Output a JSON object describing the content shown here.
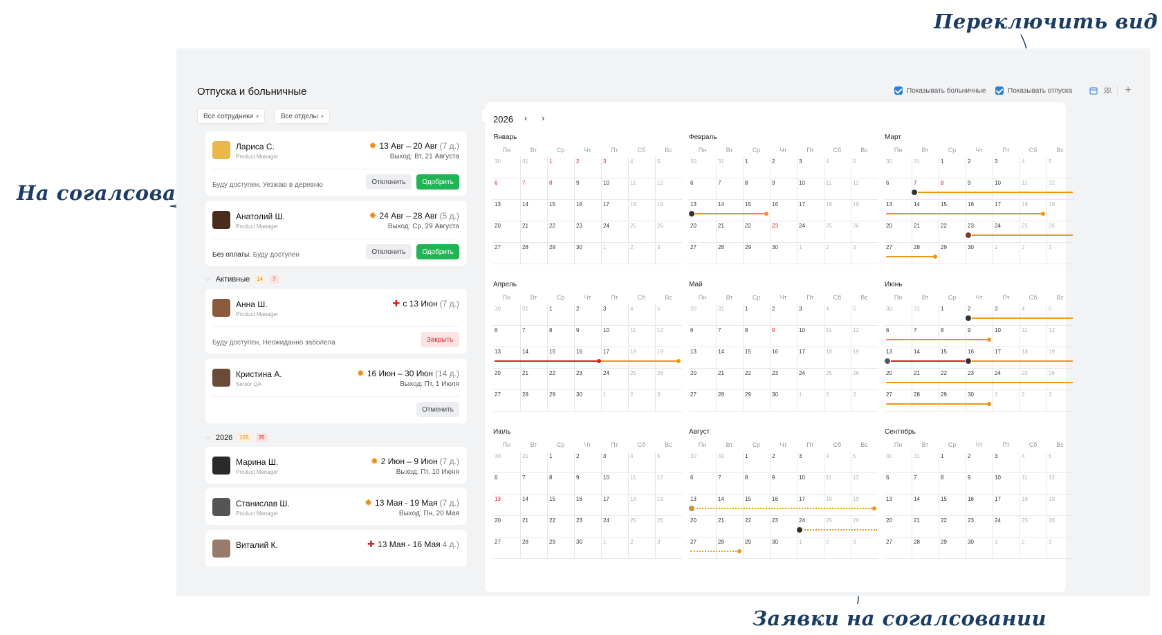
{
  "annotations": {
    "switch_view": "Переключить вид",
    "pending": "На согалсовании",
    "pending_requests": "Заявки на согалсовании"
  },
  "header": {
    "title": "Отпуска и больничные",
    "show_sick": "Показывать больничные",
    "show_vacation": "Показывать отпуска",
    "view_calendar_icon": "calendar-icon",
    "view_people_icon": "people-icon"
  },
  "filters": {
    "employees": "Все сотрудники",
    "departments": "Все отделы"
  },
  "pending_cards": [
    {
      "name": "Лариса С.",
      "role": "Product Manager",
      "dates": "13 Авг – 20 Авг",
      "days": "(7 д.)",
      "return": "Выход: Вт, 21 Августа",
      "note_bold": "",
      "note": "Буду доступен, Уезжаю в деревню",
      "reject": "Отклонить",
      "approve": "Одобрить"
    },
    {
      "name": "Анатолий Ш.",
      "role": "Product Manager",
      "dates": "24 Авг – 28 Авг",
      "days": "(5 д.)",
      "return": "Выход: Ср, 29 Августа",
      "note_bold": "Без оплаты.",
      "note": "Буду доступен",
      "reject": "Отклонить",
      "approve": "Одобрить"
    }
  ],
  "active_section": {
    "label": "Активные",
    "badge_vac": "14",
    "badge_sick": "7"
  },
  "active_cards": [
    {
      "name": "Анна Ш.",
      "role": "Product Manager",
      "dates": "с 13 Июн",
      "days": "(7 д.)",
      "note": "Буду доступен, Неожиданно заболела",
      "action": "Закрыть"
    },
    {
      "name": "Кристина А.",
      "role": "Senior QA",
      "dates": "16 Июн – 30 Июн",
      "days": "(14 д.)",
      "return": "Выход: Пт, 1 Июля",
      "action": "Отменить"
    }
  ],
  "year_section": {
    "label": "2026",
    "badge_vac": "155",
    "badge_sick": "35"
  },
  "year_cards": [
    {
      "name": "Марина Ш.",
      "role": "Product Manager",
      "dates": "2 Июн – 9 Июн",
      "days": "(7 д.)",
      "return": "Выход: Пт, 10 Июня"
    },
    {
      "name": "Станислав Ш.",
      "role": "Product Manager",
      "dates": "13 Мая - 19 Мая",
      "days": "(7 д.)",
      "return": "Выход: Пн, 20 Мая"
    },
    {
      "name": "Виталий К.",
      "role": "",
      "dates": "13 Мая - 16 Мая",
      "days": "4 д.)",
      "return": ""
    }
  ],
  "calendar": {
    "year": "2026",
    "weekdays": [
      "Пн",
      "Вт",
      "Ср",
      "Чт",
      "Пт",
      "Сб",
      "Вс"
    ],
    "months": [
      {
        "name": "Январь",
        "rows": [
          [
            "30",
            "31",
            "1",
            "2",
            "3",
            "4",
            "5"
          ],
          [
            "6",
            "7",
            "8",
            "9",
            "10",
            "11",
            "12"
          ],
          [
            "13",
            "14",
            "15",
            "16",
            "17",
            "18",
            "19"
          ],
          [
            "20",
            "21",
            "22",
            "23",
            "24",
            "25",
            "26"
          ],
          [
            "27",
            "28",
            "29",
            "30",
            "1",
            "2",
            "3"
          ]
        ],
        "red": [
          [
            0,
            2
          ],
          [
            0,
            3
          ],
          [
            0,
            4
          ],
          [
            1,
            0
          ],
          [
            1,
            1
          ],
          [
            1,
            2
          ]
        ]
      },
      {
        "name": "Февраль",
        "rows": [
          [
            "30",
            "31",
            "1",
            "2",
            "3",
            "4",
            "5"
          ],
          [
            "6",
            "7",
            "8",
            "9",
            "10",
            "11",
            "12"
          ],
          [
            "13",
            "14",
            "15",
            "16",
            "17",
            "18",
            "19"
          ],
          [
            "20",
            "21",
            "22",
            "23",
            "24",
            "25",
            "26"
          ],
          [
            "27",
            "28",
            "29",
            "30",
            "1",
            "2",
            "3"
          ]
        ],
        "red": [
          [
            3,
            3
          ]
        ]
      },
      {
        "name": "Март",
        "rows": [
          [
            "30",
            "31",
            "1",
            "2",
            "3",
            "4",
            "5"
          ],
          [
            "6",
            "7",
            "8",
            "9",
            "10",
            "11",
            "12"
          ],
          [
            "13",
            "14",
            "15",
            "16",
            "17",
            "18",
            "19"
          ],
          [
            "20",
            "21",
            "22",
            "23",
            "24",
            "25",
            "26"
          ],
          [
            "27",
            "28",
            "29",
            "30",
            "1",
            "2",
            "3"
          ]
        ],
        "red": [
          [
            1,
            2
          ]
        ]
      },
      {
        "name": "Апрель",
        "rows": [
          [
            "30",
            "31",
            "1",
            "2",
            "3",
            "4",
            "5"
          ],
          [
            "6",
            "7",
            "8",
            "9",
            "10",
            "11",
            "12"
          ],
          [
            "13",
            "14",
            "15",
            "16",
            "17",
            "18",
            "19"
          ],
          [
            "20",
            "21",
            "22",
            "23",
            "24",
            "25",
            "26"
          ],
          [
            "27",
            "28",
            "29",
            "30",
            "1",
            "2",
            "3"
          ]
        ],
        "red": []
      },
      {
        "name": "Май",
        "rows": [
          [
            "30",
            "31",
            "1",
            "2",
            "3",
            "4",
            "5"
          ],
          [
            "6",
            "7",
            "8",
            "9",
            "10",
            "11",
            "12"
          ],
          [
            "13",
            "14",
            "15",
            "16",
            "17",
            "18",
            "19"
          ],
          [
            "20",
            "21",
            "22",
            "23",
            "24",
            "25",
            "26"
          ],
          [
            "27",
            "28",
            "29",
            "30",
            "1",
            "2",
            "3"
          ]
        ],
        "red": [
          [
            1,
            3
          ]
        ]
      },
      {
        "name": "Июнь",
        "rows": [
          [
            "30",
            "31",
            "1",
            "2",
            "3",
            "4",
            "5"
          ],
          [
            "6",
            "7",
            "8",
            "9",
            "10",
            "11",
            "12"
          ],
          [
            "13",
            "14",
            "15",
            "16",
            "17",
            "18",
            "19"
          ],
          [
            "20",
            "21",
            "22",
            "23",
            "24",
            "25",
            "26"
          ],
          [
            "27",
            "28",
            "29",
            "30",
            "1",
            "2",
            "3"
          ]
        ],
        "red": []
      },
      {
        "name": "Июль",
        "rows": [
          [
            "30",
            "31",
            "1",
            "2",
            "3",
            "4",
            "5"
          ],
          [
            "6",
            "7",
            "8",
            "9",
            "10",
            "11",
            "12"
          ],
          [
            "13",
            "14",
            "15",
            "16",
            "17",
            "18",
            "19"
          ],
          [
            "20",
            "21",
            "22",
            "23",
            "24",
            "25",
            "26"
          ],
          [
            "27",
            "28",
            "29",
            "30",
            "1",
            "2",
            "3"
          ]
        ],
        "red": [
          [
            2,
            0
          ]
        ]
      },
      {
        "name": "Август",
        "rows": [
          [
            "30",
            "31",
            "1",
            "2",
            "3",
            "4",
            "5"
          ],
          [
            "6",
            "7",
            "8",
            "9",
            "10",
            "11",
            "12"
          ],
          [
            "13",
            "14",
            "15",
            "16",
            "17",
            "18",
            "19"
          ],
          [
            "20",
            "21",
            "22",
            "23",
            "24",
            "25",
            "26"
          ],
          [
            "27",
            "28",
            "29",
            "30",
            "1",
            "2",
            "3"
          ]
        ],
        "red": []
      },
      {
        "name": "Сентябрь",
        "rows": [
          [
            "30",
            "31",
            "1",
            "2",
            "3",
            "4",
            "5"
          ],
          [
            "6",
            "7",
            "8",
            "9",
            "10",
            "11",
            "12"
          ],
          [
            "13",
            "14",
            "15",
            "16",
            "17",
            "18",
            "19"
          ],
          [
            "20",
            "21",
            "22",
            "23",
            "24",
            "25",
            "26"
          ],
          [
            "27",
            "28",
            "29",
            "30",
            "1",
            "2",
            "3"
          ]
        ],
        "red": []
      }
    ]
  },
  "colors": {
    "vacation": "#f29611",
    "sick": "#d42020",
    "approve": "#1fb555",
    "accent": "#2b7fd8"
  }
}
